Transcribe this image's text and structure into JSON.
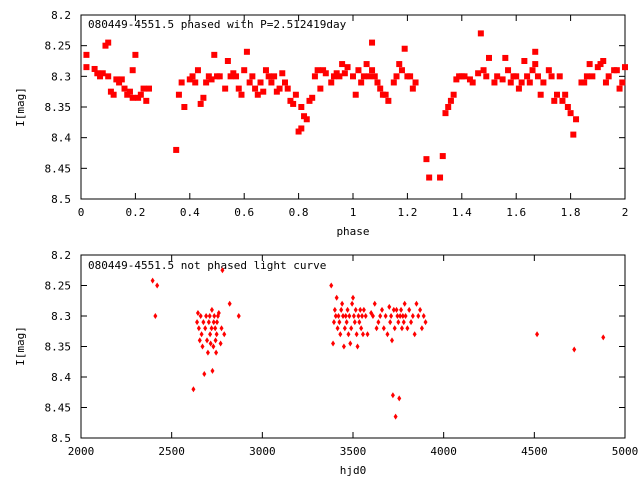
{
  "chart_data": [
    {
      "type": "scatter",
      "title": "080449-4551.5 phased with P=2.512419day",
      "xlabel": "phase",
      "ylabel": "I[mag]",
      "xlim": [
        0,
        2
      ],
      "ylim": [
        8.5,
        8.2
      ],
      "y_inverted": true,
      "grid": false,
      "marker_color": "#ff0000",
      "marker": "square",
      "xticks": [
        "0",
        "0.2",
        "0.4",
        "0.6",
        "0.8",
        "1",
        "1.2",
        "1.4",
        "1.6",
        "1.8",
        "2"
      ],
      "yticks": [
        "8.2",
        "8.25",
        "8.3",
        "8.35",
        "8.4",
        "8.45",
        "8.5"
      ],
      "points": [
        [
          0.02,
          8.285
        ],
        [
          0.02,
          8.265
        ],
        [
          0.05,
          8.288
        ],
        [
          0.06,
          8.295
        ],
        [
          0.07,
          8.3
        ],
        [
          0.08,
          8.295
        ],
        [
          0.09,
          8.25
        ],
        [
          0.1,
          8.245
        ],
        [
          0.1,
          8.3
        ],
        [
          0.11,
          8.325
        ],
        [
          0.12,
          8.33
        ],
        [
          0.13,
          8.305
        ],
        [
          0.14,
          8.31
        ],
        [
          0.15,
          8.305
        ],
        [
          0.16,
          8.32
        ],
        [
          0.17,
          8.33
        ],
        [
          0.18,
          8.325
        ],
        [
          0.19,
          8.335
        ],
        [
          0.19,
          8.29
        ],
        [
          0.2,
          8.265
        ],
        [
          0.21,
          8.335
        ],
        [
          0.22,
          8.33
        ],
        [
          0.23,
          8.32
        ],
        [
          0.24,
          8.34
        ],
        [
          0.25,
          8.32
        ],
        [
          0.35,
          8.42
        ],
        [
          0.36,
          8.33
        ],
        [
          0.37,
          8.31
        ],
        [
          0.38,
          8.35
        ],
        [
          0.4,
          8.305
        ],
        [
          0.41,
          8.3
        ],
        [
          0.42,
          8.31
        ],
        [
          0.43,
          8.29
        ],
        [
          0.44,
          8.345
        ],
        [
          0.45,
          8.335
        ],
        [
          0.46,
          8.31
        ],
        [
          0.47,
          8.3
        ],
        [
          0.48,
          8.305
        ],
        [
          0.49,
          8.265
        ],
        [
          0.5,
          8.3
        ],
        [
          0.51,
          8.3
        ],
        [
          0.53,
          8.32
        ],
        [
          0.54,
          8.275
        ],
        [
          0.55,
          8.3
        ],
        [
          0.56,
          8.295
        ],
        [
          0.57,
          8.3
        ],
        [
          0.58,
          8.32
        ],
        [
          0.59,
          8.33
        ],
        [
          0.6,
          8.29
        ],
        [
          0.61,
          8.26
        ],
        [
          0.62,
          8.31
        ],
        [
          0.63,
          8.3
        ],
        [
          0.64,
          8.32
        ],
        [
          0.65,
          8.33
        ],
        [
          0.66,
          8.31
        ],
        [
          0.67,
          8.325
        ],
        [
          0.68,
          8.29
        ],
        [
          0.69,
          8.3
        ],
        [
          0.7,
          8.31
        ],
        [
          0.71,
          8.3
        ],
        [
          0.72,
          8.325
        ],
        [
          0.73,
          8.32
        ],
        [
          0.74,
          8.295
        ],
        [
          0.75,
          8.31
        ],
        [
          0.76,
          8.32
        ],
        [
          0.77,
          8.34
        ],
        [
          0.78,
          8.345
        ],
        [
          0.79,
          8.33
        ],
        [
          0.8,
          8.39
        ],
        [
          0.81,
          8.385
        ],
        [
          0.81,
          8.35
        ],
        [
          0.82,
          8.365
        ],
        [
          0.83,
          8.37
        ],
        [
          0.84,
          8.34
        ],
        [
          0.85,
          8.335
        ],
        [
          0.86,
          8.3
        ],
        [
          0.87,
          8.29
        ],
        [
          0.88,
          8.32
        ],
        [
          0.89,
          8.29
        ],
        [
          0.9,
          8.295
        ],
        [
          0.92,
          8.31
        ],
        [
          0.93,
          8.3
        ],
        [
          0.94,
          8.295
        ],
        [
          0.95,
          8.3
        ],
        [
          0.96,
          8.28
        ],
        [
          0.97,
          8.295
        ],
        [
          0.98,
          8.285
        ],
        [
          1.0,
          8.3
        ],
        [
          1.01,
          8.33
        ],
        [
          1.02,
          8.29
        ],
        [
          1.03,
          8.31
        ],
        [
          1.04,
          8.3
        ],
        [
          1.05,
          8.28
        ],
        [
          1.06,
          8.3
        ],
        [
          1.07,
          8.29
        ],
        [
          1.07,
          8.245
        ],
        [
          1.08,
          8.3
        ],
        [
          1.09,
          8.31
        ],
        [
          1.1,
          8.32
        ],
        [
          1.11,
          8.33
        ],
        [
          1.12,
          8.33
        ],
        [
          1.13,
          8.34
        ],
        [
          1.15,
          8.31
        ],
        [
          1.16,
          8.3
        ],
        [
          1.17,
          8.28
        ],
        [
          1.18,
          8.29
        ],
        [
          1.19,
          8.255
        ],
        [
          1.2,
          8.3
        ],
        [
          1.21,
          8.3
        ],
        [
          1.22,
          8.32
        ],
        [
          1.23,
          8.31
        ],
        [
          1.27,
          8.435
        ],
        [
          1.28,
          8.465
        ],
        [
          1.32,
          8.465
        ],
        [
          1.33,
          8.43
        ],
        [
          1.34,
          8.36
        ],
        [
          1.35,
          8.35
        ],
        [
          1.36,
          8.34
        ],
        [
          1.37,
          8.33
        ],
        [
          1.38,
          8.305
        ],
        [
          1.39,
          8.3
        ],
        [
          1.4,
          8.3
        ],
        [
          1.41,
          8.3
        ],
        [
          1.43,
          8.305
        ],
        [
          1.44,
          8.31
        ],
        [
          1.46,
          8.295
        ],
        [
          1.47,
          8.23
        ],
        [
          1.48,
          8.29
        ],
        [
          1.49,
          8.3
        ],
        [
          1.5,
          8.27
        ],
        [
          1.52,
          8.31
        ],
        [
          1.53,
          8.3
        ],
        [
          1.55,
          8.305
        ],
        [
          1.56,
          8.27
        ],
        [
          1.57,
          8.29
        ],
        [
          1.58,
          8.31
        ],
        [
          1.59,
          8.3
        ],
        [
          1.6,
          8.3
        ],
        [
          1.61,
          8.32
        ],
        [
          1.62,
          8.31
        ],
        [
          1.63,
          8.275
        ],
        [
          1.64,
          8.3
        ],
        [
          1.65,
          8.31
        ],
        [
          1.66,
          8.29
        ],
        [
          1.67,
          8.28
        ],
        [
          1.67,
          8.26
        ],
        [
          1.68,
          8.3
        ],
        [
          1.69,
          8.33
        ],
        [
          1.7,
          8.31
        ],
        [
          1.72,
          8.29
        ],
        [
          1.73,
          8.3
        ],
        [
          1.74,
          8.34
        ],
        [
          1.75,
          8.33
        ],
        [
          1.76,
          8.3
        ],
        [
          1.77,
          8.34
        ],
        [
          1.78,
          8.33
        ],
        [
          1.79,
          8.35
        ],
        [
          1.8,
          8.36
        ],
        [
          1.81,
          8.395
        ],
        [
          1.82,
          8.37
        ],
        [
          1.84,
          8.31
        ],
        [
          1.85,
          8.31
        ],
        [
          1.86,
          8.3
        ],
        [
          1.87,
          8.28
        ],
        [
          1.88,
          8.3
        ],
        [
          1.9,
          8.285
        ],
        [
          1.91,
          8.28
        ],
        [
          1.92,
          8.275
        ],
        [
          1.93,
          8.31
        ],
        [
          1.94,
          8.3
        ],
        [
          1.96,
          8.29
        ],
        [
          1.97,
          8.29
        ],
        [
          1.98,
          8.32
        ],
        [
          1.99,
          8.31
        ],
        [
          2.0,
          8.285
        ]
      ]
    },
    {
      "type": "scatter",
      "title": "080449-4551.5 not phased light curve",
      "xlabel": "hjd0",
      "ylabel": "I[mag]",
      "xlim": [
        2000,
        5000
      ],
      "ylim": [
        8.5,
        8.2
      ],
      "y_inverted": true,
      "grid": false,
      "marker_color": "#ff0000",
      "marker": "diamond",
      "xticks": [
        "2000",
        "2500",
        "3000",
        "3500",
        "4000",
        "4500",
        "5000"
      ],
      "yticks": [
        "8.2",
        "8.25",
        "8.3",
        "8.35",
        "8.4",
        "8.45",
        "8.5"
      ],
      "points": [
        [
          2395,
          8.242
        ],
        [
          2410,
          8.3
        ],
        [
          2420,
          8.25
        ],
        [
          2620,
          8.42
        ],
        [
          2640,
          8.31
        ],
        [
          2645,
          8.295
        ],
        [
          2650,
          8.32
        ],
        [
          2655,
          8.34
        ],
        [
          2660,
          8.3
        ],
        [
          2665,
          8.33
        ],
        [
          2670,
          8.35
        ],
        [
          2675,
          8.31
        ],
        [
          2680,
          8.395
        ],
        [
          2685,
          8.32
        ],
        [
          2690,
          8.3
        ],
        [
          2695,
          8.34
        ],
        [
          2700,
          8.36
        ],
        [
          2705,
          8.31
        ],
        [
          2710,
          8.3
        ],
        [
          2712,
          8.33
        ],
        [
          2715,
          8.345
        ],
        [
          2720,
          8.32
        ],
        [
          2722,
          8.29
        ],
        [
          2725,
          8.39
        ],
        [
          2730,
          8.35
        ],
        [
          2732,
          8.31
        ],
        [
          2735,
          8.3
        ],
        [
          2740,
          8.32
        ],
        [
          2742,
          8.34
        ],
        [
          2745,
          8.36
        ],
        [
          2748,
          8.33
        ],
        [
          2750,
          8.31
        ],
        [
          2755,
          8.3
        ],
        [
          2760,
          8.295
        ],
        [
          2770,
          8.345
        ],
        [
          2775,
          8.32
        ],
        [
          2780,
          8.225
        ],
        [
          2790,
          8.33
        ],
        [
          2820,
          8.28
        ],
        [
          2870,
          8.3
        ],
        [
          3380,
          8.25
        ],
        [
          3390,
          8.345
        ],
        [
          3395,
          8.31
        ],
        [
          3400,
          8.29
        ],
        [
          3405,
          8.3
        ],
        [
          3410,
          8.27
        ],
        [
          3415,
          8.32
        ],
        [
          3420,
          8.3
        ],
        [
          3425,
          8.31
        ],
        [
          3430,
          8.33
        ],
        [
          3435,
          8.29
        ],
        [
          3440,
          8.28
        ],
        [
          3445,
          8.3
        ],
        [
          3450,
          8.35
        ],
        [
          3455,
          8.32
        ],
        [
          3460,
          8.3
        ],
        [
          3465,
          8.31
        ],
        [
          3470,
          8.29
        ],
        [
          3475,
          8.33
        ],
        [
          3480,
          8.3
        ],
        [
          3485,
          8.345
        ],
        [
          3490,
          8.32
        ],
        [
          3495,
          8.28
        ],
        [
          3500,
          8.27
        ],
        [
          3505,
          8.3
        ],
        [
          3510,
          8.31
        ],
        [
          3515,
          8.29
        ],
        [
          3520,
          8.33
        ],
        [
          3525,
          8.35
        ],
        [
          3530,
          8.3
        ],
        [
          3535,
          8.31
        ],
        [
          3540,
          8.29
        ],
        [
          3545,
          8.32
        ],
        [
          3550,
          8.3
        ],
        [
          3555,
          8.33
        ],
        [
          3560,
          8.29
        ],
        [
          3570,
          8.3
        ],
        [
          3580,
          8.33
        ],
        [
          3600,
          8.295
        ],
        [
          3610,
          8.3
        ],
        [
          3620,
          8.28
        ],
        [
          3630,
          8.32
        ],
        [
          3640,
          8.31
        ],
        [
          3650,
          8.3
        ],
        [
          3660,
          8.29
        ],
        [
          3670,
          8.32
        ],
        [
          3680,
          8.3
        ],
        [
          3690,
          8.33
        ],
        [
          3700,
          8.285
        ],
        [
          3705,
          8.31
        ],
        [
          3710,
          8.3
        ],
        [
          3715,
          8.34
        ],
        [
          3720,
          8.43
        ],
        [
          3725,
          8.29
        ],
        [
          3730,
          8.32
        ],
        [
          3735,
          8.465
        ],
        [
          3740,
          8.29
        ],
        [
          3745,
          8.3
        ],
        [
          3750,
          8.31
        ],
        [
          3755,
          8.435
        ],
        [
          3760,
          8.3
        ],
        [
          3765,
          8.29
        ],
        [
          3770,
          8.32
        ],
        [
          3775,
          8.3
        ],
        [
          3780,
          8.31
        ],
        [
          3785,
          8.28
        ],
        [
          3790,
          8.3
        ],
        [
          3800,
          8.32
        ],
        [
          3810,
          8.29
        ],
        [
          3820,
          8.31
        ],
        [
          3830,
          8.3
        ],
        [
          3840,
          8.33
        ],
        [
          3850,
          8.28
        ],
        [
          3860,
          8.3
        ],
        [
          3870,
          8.29
        ],
        [
          3880,
          8.32
        ],
        [
          3890,
          8.3
        ],
        [
          3900,
          8.31
        ],
        [
          4515,
          8.33
        ],
        [
          4720,
          8.355
        ],
        [
          4880,
          8.335
        ]
      ]
    }
  ]
}
